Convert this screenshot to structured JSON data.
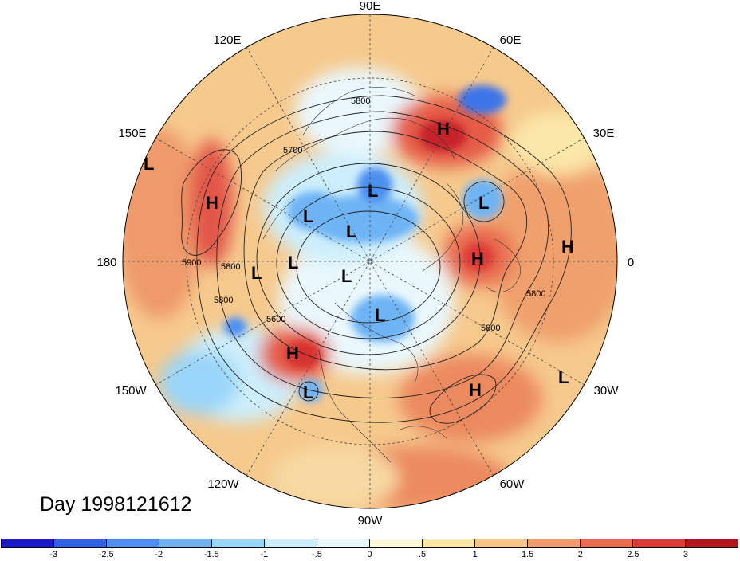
{
  "map": {
    "projection": "north-polar-stereographic",
    "longitude_labels": [
      "90E",
      "60E",
      "30E",
      "0",
      "30W",
      "60W",
      "90W",
      "120W",
      "150W",
      "180",
      "150E",
      "120E"
    ],
    "contour_labels": [
      "5800",
      "5700",
      "5900",
      "5800",
      "5800",
      "5600",
      "5800",
      "5800"
    ],
    "pressure_centers": [
      "L",
      "H",
      "H",
      "L",
      "L",
      "L",
      "L",
      "H",
      "H",
      "L",
      "L",
      "L",
      "L",
      "H",
      "L",
      "H",
      "L"
    ]
  },
  "day_label": "Day 1998121612",
  "colorbar": {
    "colors": [
      "#1a1acc",
      "#2f5fe6",
      "#4b8ff0",
      "#6eb4f5",
      "#9ad6fa",
      "#cdeefc",
      "#eaf8fd",
      "#fdf9da",
      "#fbe7a8",
      "#f7c684",
      "#f29c6d",
      "#eb6a50",
      "#de3a38",
      "#b8141e"
    ],
    "tick_labels": [
      "-3",
      "-2.5",
      "-2",
      "-1.5",
      "-1",
      "-.5",
      "0",
      ".5",
      "1",
      "1.5",
      "2",
      "2.5",
      "3"
    ]
  }
}
